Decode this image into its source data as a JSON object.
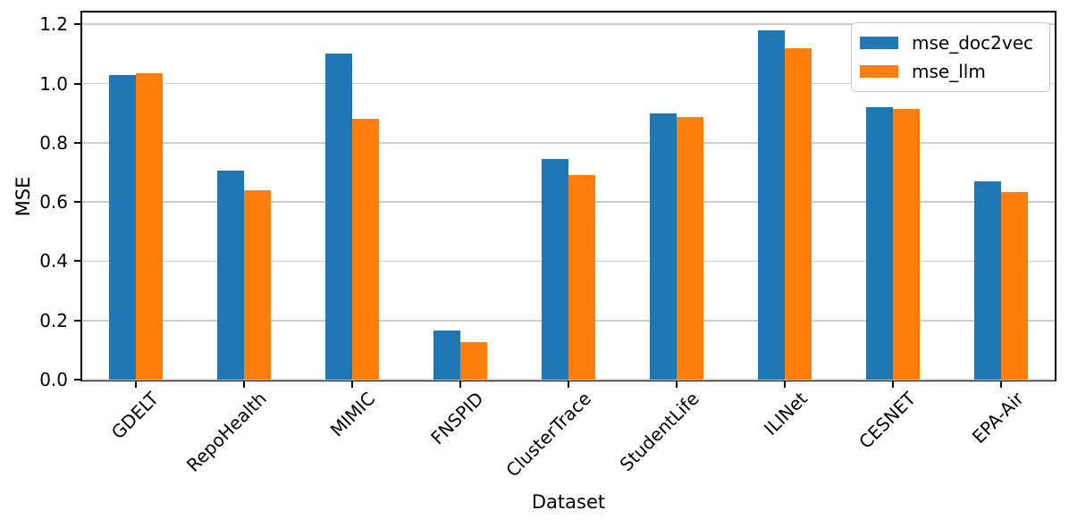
{
  "chart_data": {
    "type": "bar",
    "title": "",
    "xlabel": "Dataset",
    "ylabel": "MSE",
    "categories": [
      "GDELT",
      "RepoHealth",
      "MIMIC",
      "FNSPID",
      "ClusterTrace",
      "StudentLife",
      "ILINet",
      "CESNET",
      "EPA-Air"
    ],
    "series": [
      {
        "name": "mse_doc2vec",
        "color": "#1f77b4",
        "values": [
          1.03,
          0.705,
          1.1,
          0.165,
          0.745,
          0.9,
          1.18,
          0.92,
          0.67
        ]
      },
      {
        "name": "mse_llm",
        "color": "#ff7f0e",
        "values": [
          1.035,
          0.64,
          0.88,
          0.128,
          0.692,
          0.887,
          1.12,
          0.913,
          0.635
        ]
      }
    ],
    "ylim": [
      0,
      1.24
    ],
    "ytick_labels": [
      "0.0",
      "0.2",
      "0.4",
      "0.6",
      "0.8",
      "1.0",
      "1.2"
    ],
    "grid": true,
    "grid_color": "#cccccc",
    "legend_position": "upper right",
    "xtick_rotation": 45
  }
}
